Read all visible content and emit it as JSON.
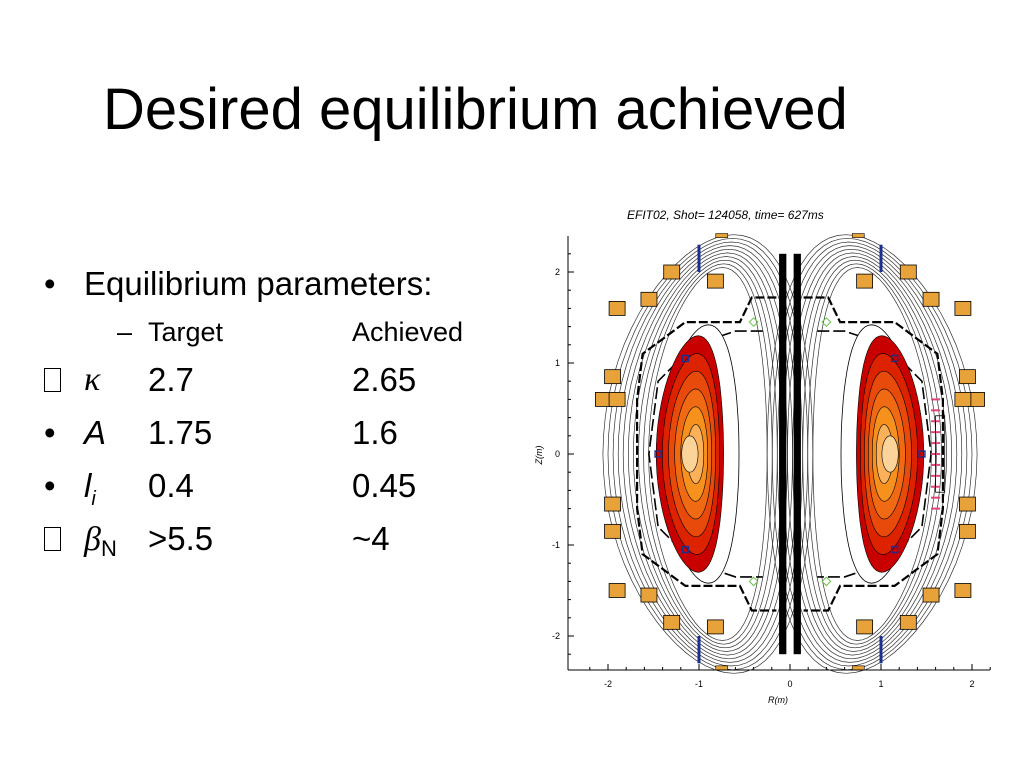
{
  "slide": {
    "title": "Desired equilibrium achieved",
    "bullet_char": "•",
    "heading": "Equilibrium parameters:",
    "sub_dash": "–",
    "col_target": "Target",
    "col_achieved": "Achieved",
    "rows": [
      {
        "symbol": "κ",
        "sub": "",
        "target": "2.7",
        "achieved": "2.65",
        "bullet": "missing-glyph"
      },
      {
        "symbol": "A",
        "sub": "",
        "target": "1.75",
        "achieved": "1.6",
        "bullet": "•"
      },
      {
        "symbol": "l",
        "sub": "i",
        "target": "0.4",
        "achieved": "0.45",
        "bullet": "•"
      },
      {
        "symbol": "β",
        "sub": "N",
        "target": ">5.5",
        "achieved": "~4",
        "bullet": "missing-glyph"
      }
    ]
  },
  "chart_data": {
    "type": "contour",
    "title": "EFIT02, Shot= 124058, time= 627ms",
    "xlabel": "R(m)",
    "ylabel": "Z(m)",
    "xlim": [
      -2.4,
      2.4
    ],
    "ylim": [
      -2.3,
      2.3
    ],
    "xticks": [
      "-2",
      "-1",
      "0",
      "1",
      "2"
    ],
    "yticks": [
      "2",
      "1",
      "0",
      "-1",
      "-2"
    ],
    "contour_levels": 6,
    "colors": {
      "fill_levels": [
        "#c80000",
        "#dd2200",
        "#e84a0c",
        "#f06a14",
        "#f7911e",
        "#fbb15a"
      ],
      "core": "#fcd49a",
      "coil": "#e8a23a",
      "probe_blue": "#1a2f8f",
      "probe_pink": "#e0457a",
      "probe_green": "#6cc24a"
    }
  }
}
